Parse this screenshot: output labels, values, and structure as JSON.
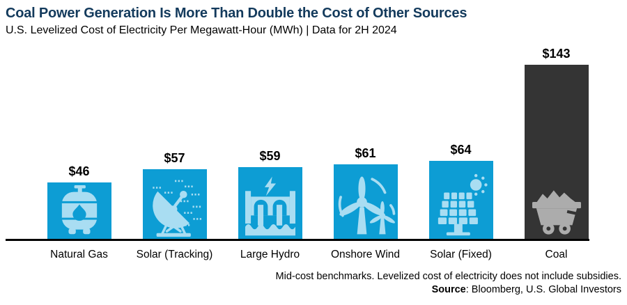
{
  "header": {
    "title": "Coal Power Generation Is More Than Double the Cost of Other Sources",
    "subtitle": "U.S. Levelized Cost of Electricity Per Megawatt-Hour (MWh) | Data for 2H 2024"
  },
  "footer": {
    "footnote": "Mid-cost benchmarks. Levelized cost of electricity does not include subsidies.",
    "source_label": "Source",
    "source_text": ": Bloomberg, U.S. Global Investors"
  },
  "colors": {
    "bar_blue": "#0D9DD4",
    "coal_dark": "#343434",
    "icon_light_blue": "#A9DDF2",
    "icon_gray": "#ACACAC",
    "title_navy": "#133A5C",
    "axis_black": "#000000"
  },
  "chart_data": {
    "type": "bar",
    "title": "U.S. Levelized Cost of Electricity Per Megawatt-Hour (MWh), 2H 2024",
    "unit": "USD per MWh",
    "ylim": [
      0,
      150
    ],
    "grid": false,
    "legend": false,
    "categories": [
      "Natural Gas",
      "Solar (Tracking)",
      "Large Hydro",
      "Onshore Wind",
      "Solar (Fixed)",
      "Coal"
    ],
    "values": [
      46,
      57,
      59,
      61,
      64,
      143
    ],
    "bars": [
      {
        "label": "Natural Gas",
        "value": 46,
        "value_label": "$46",
        "color_key": "bar_blue",
        "icon_color_key": "icon_light_blue",
        "icon": "propane-tank-icon"
      },
      {
        "label": "Solar (Tracking)",
        "value": 57,
        "value_label": "$57",
        "color_key": "bar_blue",
        "icon_color_key": "icon_light_blue",
        "icon": "solar-tracking-dish-icon"
      },
      {
        "label": "Large Hydro",
        "value": 59,
        "value_label": "$59",
        "color_key": "bar_blue",
        "icon_color_key": "icon_light_blue",
        "icon": "hydro-dam-icon"
      },
      {
        "label": "Onshore Wind",
        "value": 61,
        "value_label": "$61",
        "color_key": "bar_blue",
        "icon_color_key": "icon_light_blue",
        "icon": "wind-turbine-icon"
      },
      {
        "label": "Solar (Fixed)",
        "value": 64,
        "value_label": "$64",
        "color_key": "bar_blue",
        "icon_color_key": "icon_light_blue",
        "icon": "solar-panel-icon"
      },
      {
        "label": "Coal",
        "value": 143,
        "value_label": "$143",
        "color_key": "coal_dark",
        "icon_color_key": "icon_gray",
        "icon": "coal-cart-icon"
      }
    ]
  }
}
